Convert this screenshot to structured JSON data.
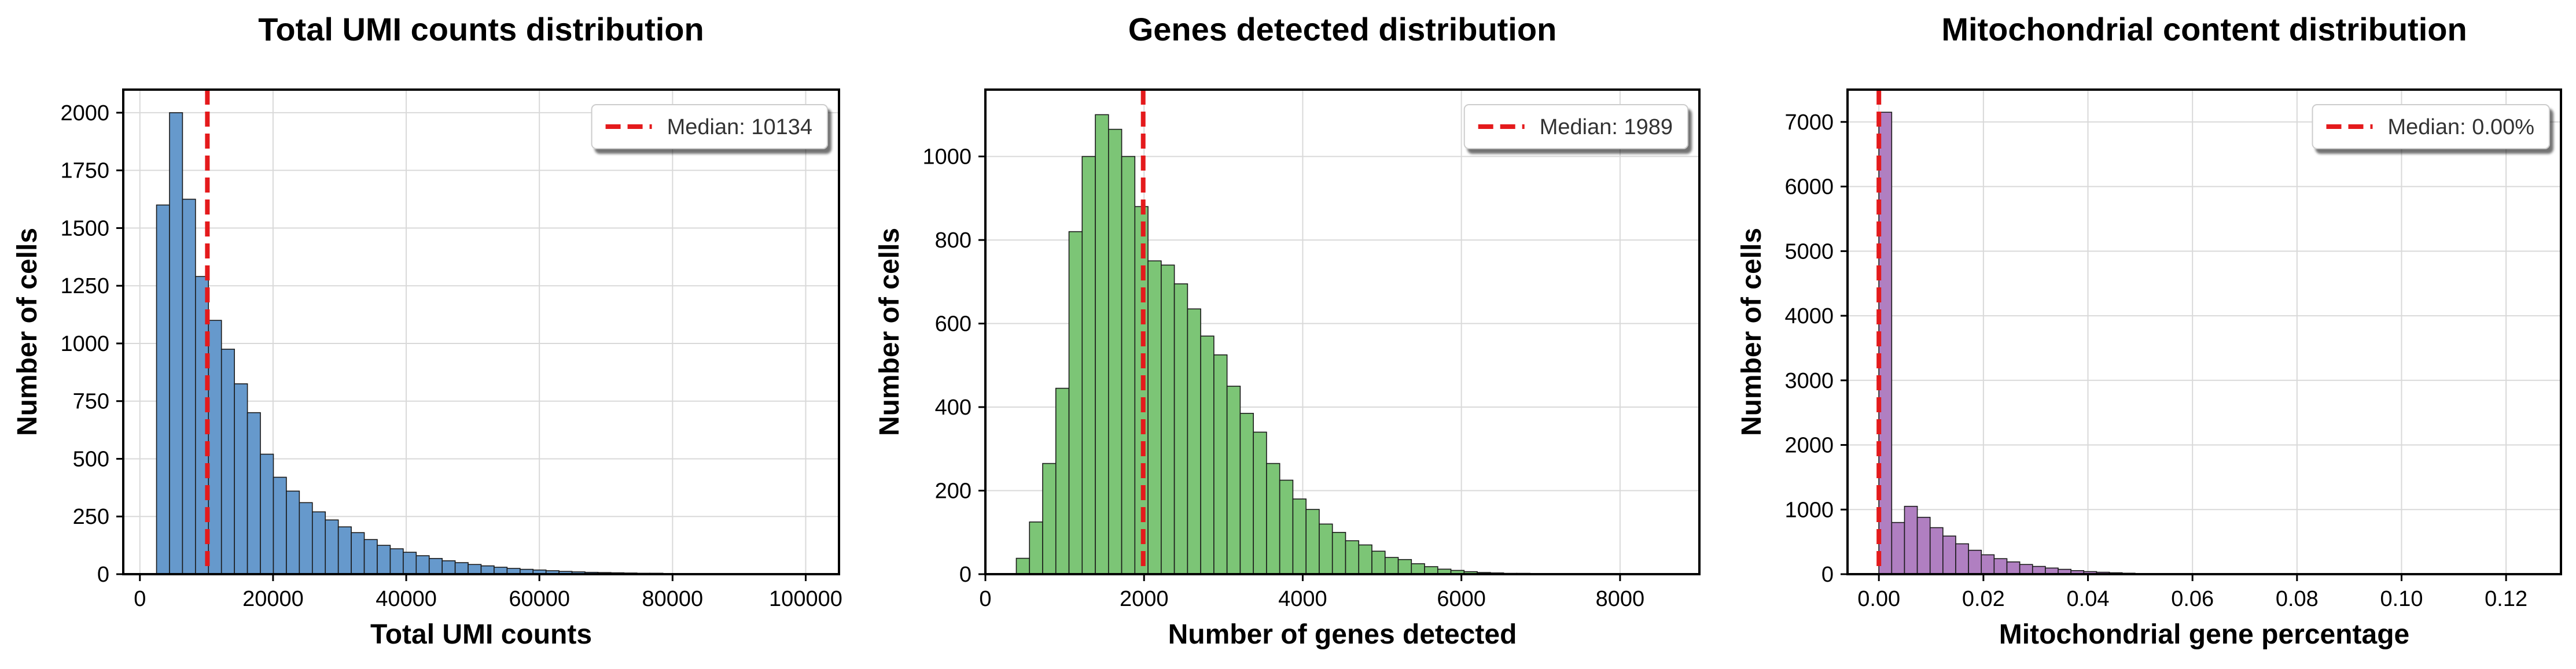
{
  "chart_data": [
    {
      "type": "bar",
      "title": "Total UMI counts distribution",
      "xlabel": "Total UMI counts",
      "ylabel": "Number of cells",
      "xlim": [
        -2500,
        105000
      ],
      "ylim": [
        0,
        2100
      ],
      "xticks": [
        0,
        20000,
        40000,
        60000,
        80000,
        100000
      ],
      "xtick_labels": [
        "0",
        "20000",
        "40000",
        "60000",
        "80000",
        "100000"
      ],
      "yticks": [
        0,
        250,
        500,
        750,
        1000,
        1250,
        1500,
        1750,
        2000
      ],
      "ytick_labels": [
        "0",
        "250",
        "500",
        "750",
        "1000",
        "1250",
        "1500",
        "1750",
        "2000"
      ],
      "bin_start": 2500,
      "bin_width": 1950,
      "values": [
        1600,
        2000,
        1625,
        1290,
        1100,
        975,
        825,
        700,
        520,
        420,
        360,
        310,
        270,
        235,
        205,
        180,
        150,
        125,
        110,
        95,
        80,
        68,
        58,
        50,
        42,
        36,
        30,
        25,
        21,
        18,
        15,
        12,
        10,
        8,
        7,
        6,
        5,
        4,
        4,
        3,
        3,
        2,
        2,
        2,
        1,
        1,
        1,
        1,
        1,
        1
      ],
      "bar_color": "#6699cc",
      "median": 10134,
      "median_color": "#e41a1c",
      "legend": "Median: 10134",
      "legend_position": "top-right",
      "grid": true
    },
    {
      "type": "bar",
      "title": "Genes detected distribution",
      "xlabel": "Number of genes detected",
      "ylabel": "Number of cells",
      "xlim": [
        0,
        9000
      ],
      "ylim": [
        0,
        1160
      ],
      "xticks": [
        0,
        2000,
        4000,
        6000,
        8000
      ],
      "xtick_labels": [
        "0",
        "2000",
        "4000",
        "6000",
        "8000"
      ],
      "yticks": [
        0,
        200,
        400,
        600,
        800,
        1000
      ],
      "ytick_labels": [
        "0",
        "200",
        "400",
        "600",
        "800",
        "1000"
      ],
      "bin_start": 390,
      "bin_width": 166,
      "values": [
        38,
        125,
        265,
        445,
        820,
        1000,
        1100,
        1065,
        1000,
        880,
        750,
        740,
        695,
        635,
        570,
        525,
        450,
        385,
        340,
        265,
        225,
        180,
        155,
        120,
        100,
        80,
        70,
        55,
        40,
        35,
        25,
        18,
        12,
        9,
        6,
        4,
        3,
        2,
        2,
        1,
        1,
        1,
        1,
        1,
        1,
        1,
        1,
        1,
        1,
        1
      ],
      "bar_color": "#7cc576",
      "median": 1989,
      "median_color": "#e41a1c",
      "legend": "Median: 1989",
      "legend_position": "top-right",
      "grid": true
    },
    {
      "type": "bar",
      "title": "Mitochondrial content distribution",
      "xlabel": "Mitochondrial gene percentage",
      "ylabel": "Number of cells",
      "xlim": [
        -0.006,
        0.1305
      ],
      "ylim": [
        0,
        7500
      ],
      "xticks": [
        0.0,
        0.02,
        0.04,
        0.06,
        0.08,
        0.1,
        0.12
      ],
      "xtick_labels": [
        "0.00",
        "0.02",
        "0.04",
        "0.06",
        "0.08",
        "0.10",
        "0.12"
      ],
      "yticks": [
        0,
        1000,
        2000,
        3000,
        4000,
        5000,
        6000,
        7000
      ],
      "ytick_labels": [
        "0",
        "1000",
        "2000",
        "3000",
        "4000",
        "5000",
        "6000",
        "7000"
      ],
      "bin_start": 0.0,
      "bin_width": 0.00245,
      "values": [
        7150,
        800,
        1050,
        880,
        720,
        590,
        470,
        370,
        300,
        240,
        190,
        150,
        120,
        95,
        75,
        55,
        40,
        30,
        22,
        15,
        10,
        7,
        5,
        4,
        3,
        2,
        2,
        1,
        1,
        1,
        1,
        1,
        1,
        1,
        1,
        1,
        1,
        1,
        1,
        1,
        1,
        1,
        1,
        1,
        1,
        1,
        1,
        1,
        1,
        1
      ],
      "bar_color": "#b07fc1",
      "median": 0.0,
      "median_color": "#e41a1c",
      "legend": "Median: 0.00%",
      "legend_position": "top-right",
      "grid": true
    }
  ]
}
